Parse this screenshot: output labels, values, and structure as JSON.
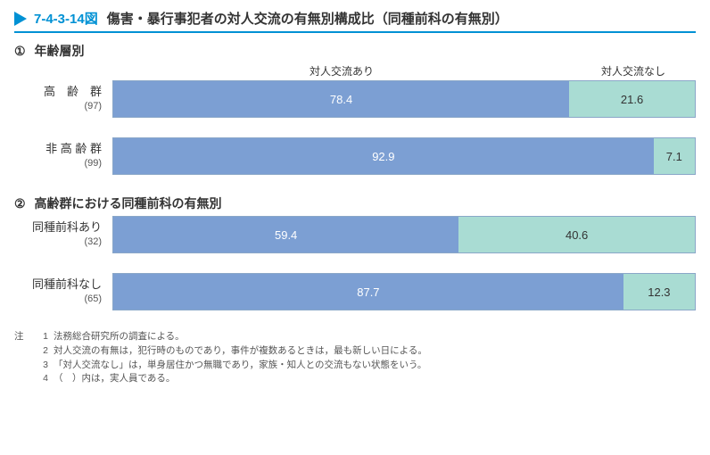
{
  "title": {
    "code": "7-4-3-14図",
    "text": "傷害・暴行事犯者の対人交流の有無別構成比（同種前科の有無別）"
  },
  "legend": {
    "yes": "対人交流あり",
    "no": "対人交流なし"
  },
  "colors": {
    "seg_yes": "#7c9fd3",
    "seg_no": "#a9dcd3",
    "border": "#8aa7c8"
  },
  "section1": {
    "num": "①",
    "title": "年齢層別",
    "rows": [
      {
        "label": "高　齢　群",
        "n": "(97)",
        "yes": 78.4,
        "no": 21.6
      },
      {
        "label": "非 高 齢 群",
        "n": "(99)",
        "yes": 92.9,
        "no": 7.1
      }
    ]
  },
  "section2": {
    "num": "②",
    "title": "高齢群における同種前科の有無別",
    "rows": [
      {
        "label": "同種前科あり",
        "n": "(32)",
        "yes": 59.4,
        "no": 40.6
      },
      {
        "label": "同種前科なし",
        "n": "(65)",
        "yes": 87.7,
        "no": 12.3
      }
    ]
  },
  "notes_label": "注",
  "notes": [
    "法務総合研究所の調査による。",
    "対人交流の有無は，犯行時のものであり，事件が複数あるときは，最も新しい日による。",
    "「対人交流なし」は，単身居住かつ無職であり，家族・知人との交流もない状態をいう。",
    "（　）内は，実人員である。"
  ]
}
